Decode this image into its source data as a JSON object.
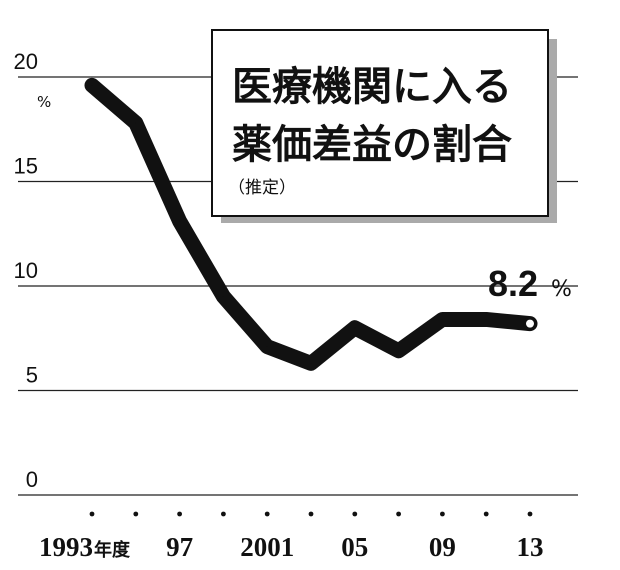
{
  "chart_data": {
    "type": "line",
    "title_lines": [
      "医療機関に入る",
      "薬価差益の割合"
    ],
    "subtitle": "（推定）",
    "y_unit": "%",
    "ylim": [
      0,
      20
    ],
    "y_ticks": [
      "0",
      "5",
      "10",
      "15",
      "20"
    ],
    "x": [
      1993,
      1995,
      1997,
      1999,
      2001,
      2003,
      2005,
      2007,
      2009,
      2011,
      2013
    ],
    "x_tick_labels": [
      {
        "year": 1993,
        "label": "1993",
        "suffix": "年度"
      },
      {
        "year": 1997,
        "label": "97"
      },
      {
        "year": 2001,
        "label": "2001"
      },
      {
        "year": 2005,
        "label": "05"
      },
      {
        "year": 2009,
        "label": "09"
      },
      {
        "year": 2013,
        "label": "13"
      }
    ],
    "series": [
      {
        "values": [
          19.6,
          17.8,
          13.1,
          9.5,
          7.1,
          6.3,
          8.0,
          6.9,
          8.4,
          8.4,
          8.2
        ]
      }
    ],
    "last_value_label": {
      "value": "8.2",
      "unit": "%"
    },
    "grid": true
  }
}
